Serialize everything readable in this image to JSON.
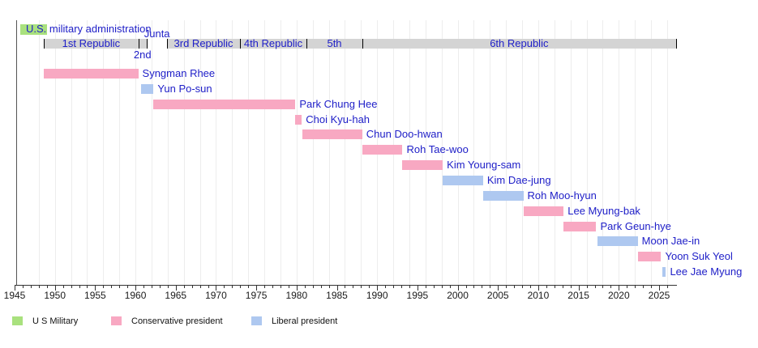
{
  "chart_data": {
    "type": "timeline",
    "x_axis": {
      "start_year": 1945,
      "end_year": 2027,
      "major_tick_interval": 5,
      "minor_tick_interval": 1,
      "tick_labels": [
        "1945",
        "1950",
        "1955",
        "1960",
        "1965",
        "1970",
        "1975",
        "1980",
        "1985",
        "1990",
        "1995",
        "2000",
        "2005",
        "2010",
        "2015",
        "2020",
        "2025"
      ]
    },
    "eras": {
      "us_military": {
        "label": "U.S. military administration",
        "start": 1945.7,
        "end": 1949.0
      },
      "junta": {
        "label": "Junta",
        "start": 1961.4,
        "end": 1963.95
      }
    },
    "republics": [
      {
        "label": "1st Republic",
        "start": 1948.65,
        "end": 1960.35,
        "label_position": "inside",
        "gap": false
      },
      {
        "label": "2nd",
        "start": 1960.35,
        "end": 1961.4,
        "label_position": "below",
        "gap": false
      },
      {
        "label": "",
        "start": 1961.4,
        "end": 1963.95,
        "label_position": "none",
        "gap": true
      },
      {
        "label": "3rd Republic",
        "start": 1963.95,
        "end": 1972.95,
        "label_position": "inside",
        "gap": false
      },
      {
        "label": "4th Republic",
        "start": 1972.95,
        "end": 1981.25,
        "label_position": "inside",
        "gap": false
      },
      {
        "label": "5th",
        "start": 1981.25,
        "end": 1988.15,
        "label_position": "inside",
        "gap": false
      },
      {
        "label": "6th Republic",
        "start": 1988.15,
        "end": 2027.1,
        "label_position": "inside",
        "gap": false
      }
    ],
    "presidents": [
      {
        "name": "Syngman Rhee",
        "start": 1948.65,
        "end": 1960.35,
        "party": "conservative"
      },
      {
        "name": "Yun Po-sun",
        "start": 1960.65,
        "end": 1962.25,
        "party": "liberal"
      },
      {
        "name": "Park Chung Hee",
        "start": 1962.25,
        "end": 1979.85,
        "party": "conservative"
      },
      {
        "name": "Choi Kyu-hah",
        "start": 1979.85,
        "end": 1980.65,
        "party": "conservative"
      },
      {
        "name": "Chun Doo-hwan",
        "start": 1980.7,
        "end": 1988.15,
        "party": "conservative"
      },
      {
        "name": "Roh Tae-woo",
        "start": 1988.15,
        "end": 1993.15,
        "party": "conservative"
      },
      {
        "name": "Kim Young-sam",
        "start": 1993.15,
        "end": 1998.15,
        "party": "conservative"
      },
      {
        "name": "Kim Dae-jung",
        "start": 1998.15,
        "end": 2003.15,
        "party": "liberal"
      },
      {
        "name": "Roh Moo-hyun",
        "start": 2003.15,
        "end": 2008.15,
        "party": "liberal"
      },
      {
        "name": "Lee Myung-bak",
        "start": 2008.15,
        "end": 2013.15,
        "party": "conservative"
      },
      {
        "name": "Park Geun-hye",
        "start": 2013.15,
        "end": 2017.2,
        "party": "conservative"
      },
      {
        "name": "Moon Jae-in",
        "start": 2017.35,
        "end": 2022.35,
        "party": "liberal"
      },
      {
        "name": "Yoon Suk Yeol",
        "start": 2022.35,
        "end": 2025.25,
        "party": "conservative"
      },
      {
        "name": "Lee Jae Myung",
        "start": 2025.45,
        "end": 2025.85,
        "party": "liberal"
      }
    ],
    "legend": [
      {
        "label": "U S Military",
        "color": "#a9e17e"
      },
      {
        "label": "Conservative president",
        "color": "#f8a8c2"
      },
      {
        "label": "Liberal president",
        "color": "#aec8f0"
      }
    ],
    "colors": {
      "conservative": "#f8a8c2",
      "liberal": "#aec8f0",
      "us_military": "#a9e17e",
      "republic_bar": "#d4d4d4",
      "republic_tick": "#000000",
      "label_text": "#2020c8",
      "axis_line": "#333333",
      "gridline": "#ededed",
      "plot_start_line": "#555555"
    }
  }
}
